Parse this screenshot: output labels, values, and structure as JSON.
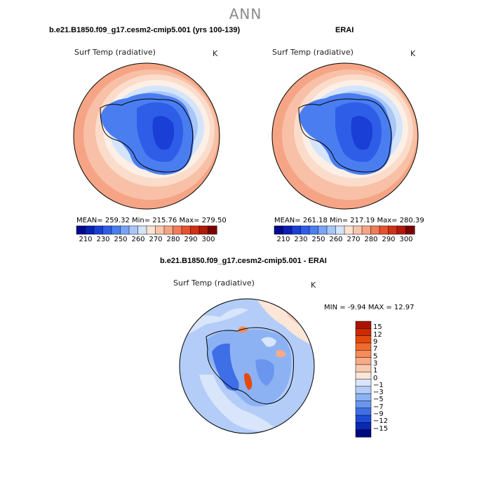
{
  "title": "ANN",
  "panels": [
    {
      "case": "b.e21.B1850.f09_g17.cesm2-cmip5.001 (yrs 100-139)",
      "variable": "Surf Temp (radiative)",
      "units": "K",
      "stats": "MEAN= 259.32   Min= 215.76   Max= 279.50"
    },
    {
      "case": "ERAI",
      "variable": "Surf Temp (radiative)",
      "units": "K",
      "stats": "MEAN= 261.18   Min= 217.19   Max= 280.39"
    }
  ],
  "abs_colorbar": {
    "tick_labels": [
      "210",
      "230",
      "250",
      "260",
      "270",
      "280",
      "290",
      "300"
    ],
    "colors": [
      "#000a8c",
      "#0a1fb4",
      "#1a3fd6",
      "#2e5ee8",
      "#4a7ef0",
      "#7aa3f5",
      "#a9c6f8",
      "#d4e4fa",
      "#fbe3d3",
      "#f9c6ad",
      "#f5a585",
      "#ef7b5c",
      "#e6522f",
      "#d03016",
      "#b01a0a",
      "#7a0000"
    ]
  },
  "diff_panel": {
    "case": "b.e21.B1850.f09_g17.cesm2-cmip5.001 - ERAI",
    "variable": "Surf Temp (radiative)",
    "units": "K",
    "stats": "MIN =   -9.94  MAX =   12.97"
  },
  "diff_colorbar": {
    "tick_labels": [
      "15",
      "12",
      "9",
      "7",
      "5",
      "3",
      "1",
      "0",
      "−1",
      "−3",
      "−5",
      "−7",
      "−9",
      "−12",
      "−15"
    ],
    "colors": [
      "#a81400",
      "#cc2a00",
      "#e44a0e",
      "#f26a2e",
      "#f58c5a",
      "#f6ab86",
      "#f8cab0",
      "#fbe6d8",
      "#d8e5fb",
      "#b3cdf8",
      "#8db2f4",
      "#6a96ef",
      "#3f6fe6",
      "#1e4bd6",
      "#0a28b4",
      "#000880"
    ]
  }
}
